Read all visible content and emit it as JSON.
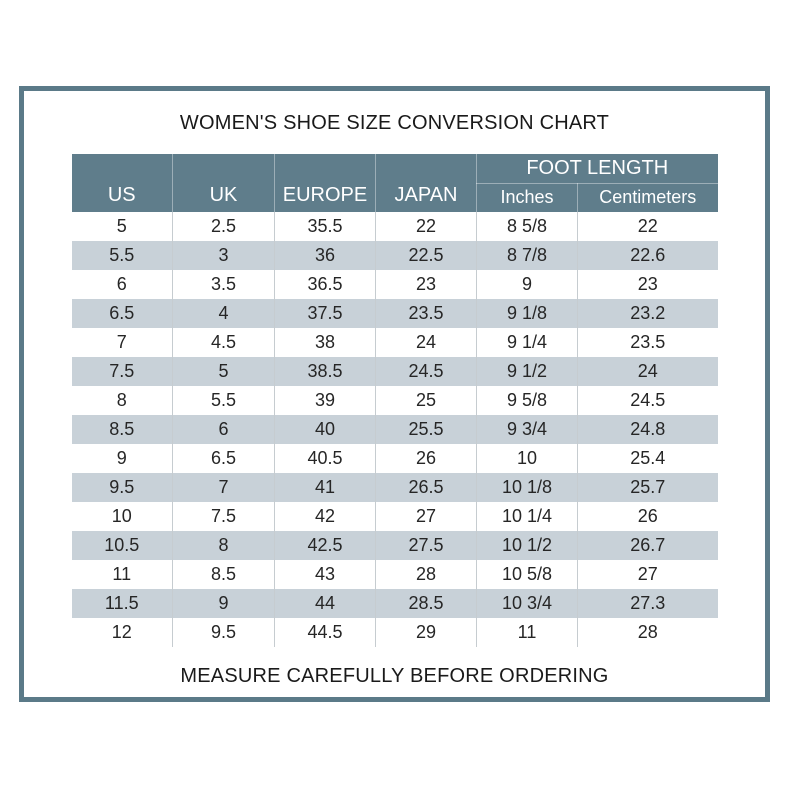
{
  "title": "WOMEN'S SHOE SIZE CONVERSION CHART",
  "footer": "MEASURE CAREFULLY BEFORE ORDERING",
  "colors": {
    "frame_border": "#5b7a88",
    "header_bg": "#5f7d8b",
    "stripe_bg": "#c8d1d8",
    "cell_border": "#c6ccd0",
    "body_text": "#262626",
    "header_text": "#ffffff"
  },
  "chart_data": {
    "type": "table",
    "title": "WOMEN'S SHOE SIZE CONVERSION CHART",
    "group_header": "FOOT LENGTH",
    "group_header_spans": [
      "Inches",
      "Centimeters"
    ],
    "columns": [
      "US",
      "UK",
      "EUROPE",
      "JAPAN",
      "Inches",
      "Centimeters"
    ],
    "rows": [
      [
        "5",
        "2.5",
        "35.5",
        "22",
        "8 5/8",
        "22"
      ],
      [
        "5.5",
        "3",
        "36",
        "22.5",
        "8 7/8",
        "22.6"
      ],
      [
        "6",
        "3.5",
        "36.5",
        "23",
        "9",
        "23"
      ],
      [
        "6.5",
        "4",
        "37.5",
        "23.5",
        "9 1/8",
        "23.2"
      ],
      [
        "7",
        "4.5",
        "38",
        "24",
        "9 1/4",
        "23.5"
      ],
      [
        "7.5",
        "5",
        "38.5",
        "24.5",
        "9 1/2",
        "24"
      ],
      [
        "8",
        "5.5",
        "39",
        "25",
        "9 5/8",
        "24.5"
      ],
      [
        "8.5",
        "6",
        "40",
        "25.5",
        "9 3/4",
        "24.8"
      ],
      [
        "9",
        "6.5",
        "40.5",
        "26",
        "10",
        "25.4"
      ],
      [
        "9.5",
        "7",
        "41",
        "26.5",
        "10 1/8",
        "25.7"
      ],
      [
        "10",
        "7.5",
        "42",
        "27",
        "10 1/4",
        "26"
      ],
      [
        "10.5",
        "8",
        "42.5",
        "27.5",
        "10 1/2",
        "26.7"
      ],
      [
        "11",
        "8.5",
        "43",
        "28",
        "10 5/8",
        "27"
      ],
      [
        "11.5",
        "9",
        "44",
        "28.5",
        "10 3/4",
        "27.3"
      ],
      [
        "12",
        "9.5",
        "44.5",
        "29",
        "11",
        "28"
      ]
    ],
    "footer": "MEASURE CAREFULLY BEFORE ORDERING"
  }
}
